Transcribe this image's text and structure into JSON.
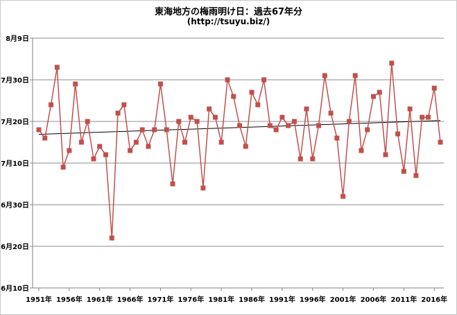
{
  "chart_data": {
    "type": "line",
    "title": "東海地方の梅雨明け日：過去67年分",
    "subtitle": "(http://tsuyu.biz/)",
    "xlabel": "",
    "ylabel": "",
    "ylim_day_of_july": [
      -20,
      40
    ],
    "y_ticks": [
      {
        "value": 40,
        "label": "8月9日"
      },
      {
        "value": 30,
        "label": "7月30日"
      },
      {
        "value": 20,
        "label": "7月20日"
      },
      {
        "value": 10,
        "label": "7月10日"
      },
      {
        "value": 0,
        "label": "6月30日"
      },
      {
        "value": -10,
        "label": "6月20日"
      },
      {
        "value": -20,
        "label": "6月10日"
      }
    ],
    "x_ticks": [
      "1951年",
      "1956年",
      "1961年",
      "1966年",
      "1971年",
      "1976年",
      "1981年",
      "1986年",
      "1991年",
      "1996年",
      "2001年",
      "2006年",
      "2011年",
      "2016年"
    ],
    "x_start_year": 1951,
    "x_end_year": 2017,
    "series": [
      {
        "name": "梅雨明け日",
        "color": "#c0504d",
        "years": [
          1951,
          1952,
          1953,
          1954,
          1955,
          1956,
          1957,
          1958,
          1959,
          1960,
          1961,
          1962,
          1963,
          1964,
          1965,
          1966,
          1967,
          1968,
          1969,
          1970,
          1971,
          1972,
          1973,
          1974,
          1975,
          1976,
          1977,
          1978,
          1979,
          1980,
          1981,
          1982,
          1983,
          1984,
          1985,
          1986,
          1987,
          1988,
          1989,
          1990,
          1991,
          1992,
          1993,
          1994,
          1995,
          1996,
          1997,
          1998,
          1999,
          2000,
          2001,
          2002,
          2003,
          2004,
          2005,
          2006,
          2007,
          2008,
          2009,
          2010,
          2011,
          2012,
          2013,
          2014,
          2015,
          2016,
          2017
        ],
        "values": [
          18,
          16,
          24,
          33,
          9,
          13,
          29,
          15,
          20,
          11,
          14,
          12,
          -8,
          22,
          24,
          13,
          15,
          18,
          14,
          18,
          29,
          18,
          5,
          20,
          15,
          21,
          20,
          4,
          23,
          21,
          15,
          30,
          26,
          19,
          14,
          27,
          24,
          30,
          19,
          18,
          21,
          19,
          20,
          11,
          23,
          11,
          19,
          31,
          22,
          16,
          2,
          20,
          31,
          13,
          18,
          26,
          27,
          12,
          34,
          17,
          8,
          23,
          7,
          21,
          21,
          28,
          15
        ]
      }
    ],
    "trendline": {
      "color": "#000000",
      "start_value": 16.9,
      "end_value": 20.2
    }
  }
}
